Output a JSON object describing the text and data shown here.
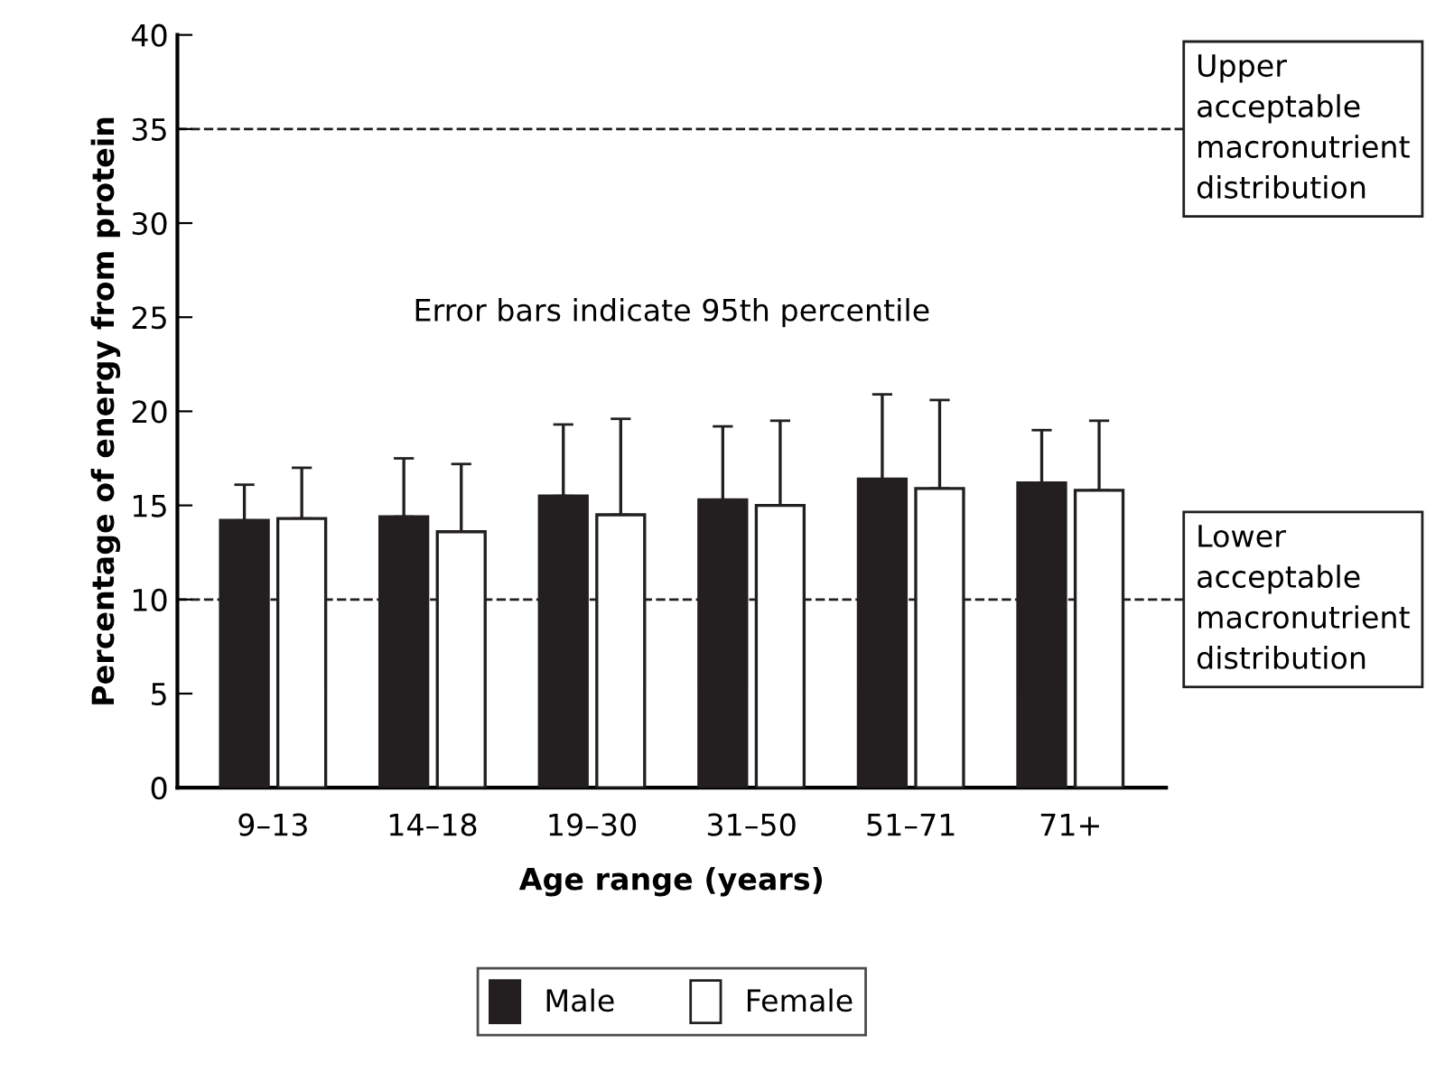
{
  "chart_data": {
    "type": "bar",
    "xlabel": "Age range (years)",
    "ylabel": "Percentage of energy from protein",
    "categories": [
      "9–13",
      "14–18",
      "19–30",
      "31–50",
      "51–71",
      "71+"
    ],
    "series": [
      {
        "name": "Male",
        "color": "#231f20",
        "values": [
          14.2,
          14.4,
          15.5,
          15.3,
          16.4,
          16.2
        ],
        "errors": [
          [
            14.2,
            16.1
          ],
          [
            14.4,
            17.5
          ],
          [
            15.5,
            19.3
          ],
          [
            15.3,
            19.2
          ],
          [
            16.4,
            20.9
          ],
          [
            16.2,
            19.0
          ]
        ]
      },
      {
        "name": "Female",
        "color": "#ffffff",
        "values": [
          14.3,
          13.6,
          14.5,
          15.0,
          15.9,
          15.8
        ],
        "errors": [
          [
            14.3,
            17.0
          ],
          [
            13.6,
            17.2
          ],
          [
            14.5,
            19.6
          ],
          [
            15.0,
            19.5
          ],
          [
            15.9,
            20.6
          ],
          [
            15.8,
            19.5
          ]
        ]
      }
    ],
    "ylim": [
      0,
      40
    ],
    "yticks": [
      0,
      5,
      10,
      15,
      20,
      25,
      30,
      35,
      40
    ],
    "ref_lines": [
      {
        "axis": "y",
        "value": 35,
        "label": "Upper\nacceptable\nmacronutrient\ndistribution",
        "line_style": "dashed"
      },
      {
        "axis": "y",
        "value": 10,
        "label": "Lower\nacceptable\nmacronutrient\ndistribution",
        "line_style": "dashed"
      }
    ],
    "annotations": [
      "Error bars indicate 95th percentile"
    ],
    "grid": false,
    "legend": "bottom"
  }
}
